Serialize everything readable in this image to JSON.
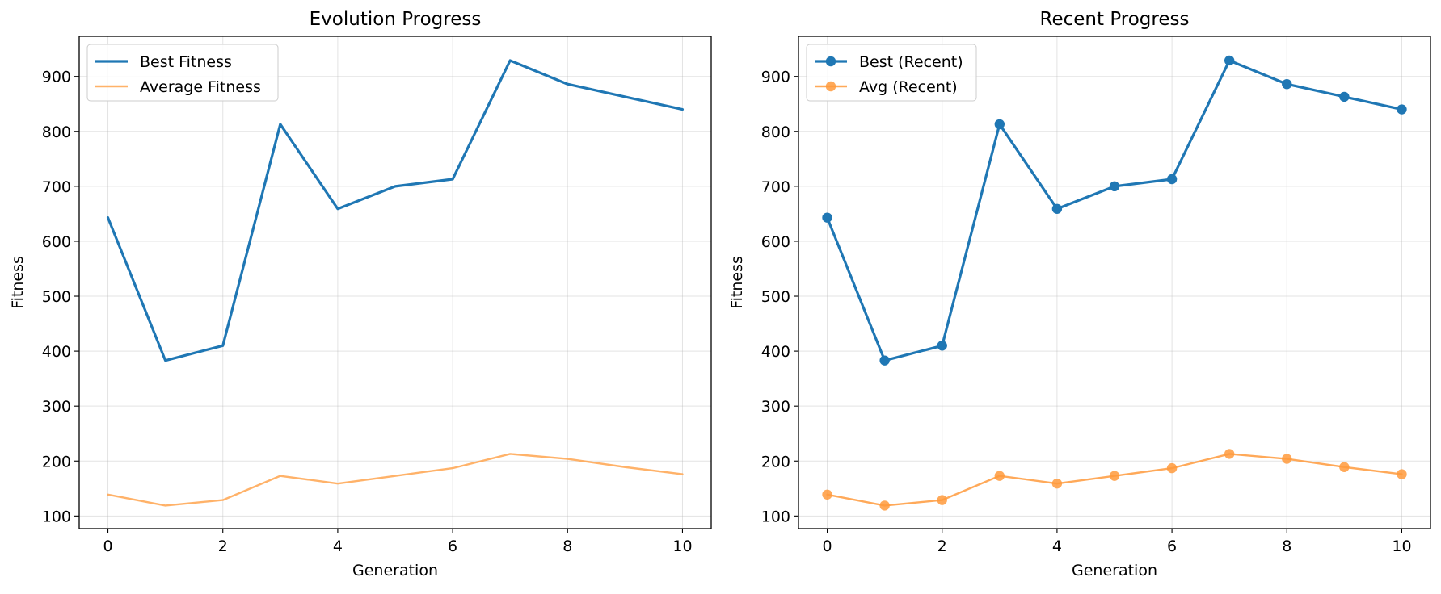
{
  "chart_data": [
    {
      "type": "line",
      "title": "Evolution Progress",
      "xlabel": "Generation",
      "ylabel": "Fitness",
      "xlim": [
        -0.5,
        10.5
      ],
      "ylim": [
        77,
        973
      ],
      "xticks": [
        0,
        2,
        4,
        6,
        8,
        10
      ],
      "yticks": [
        100,
        200,
        300,
        400,
        500,
        600,
        700,
        800,
        900
      ],
      "grid": true,
      "legend_position": "upper-left",
      "x": [
        0,
        1,
        2,
        3,
        4,
        5,
        6,
        7,
        8,
        9,
        10
      ],
      "series": [
        {
          "name": "Best Fitness",
          "color": "#1f77b4",
          "markers": false,
          "values": [
            643,
            383,
            410,
            813,
            659,
            700,
            713,
            929,
            886,
            863,
            840
          ]
        },
        {
          "name": "Average Fitness",
          "color": "#ffa54f",
          "markers": false,
          "values": [
            139,
            119,
            129,
            173,
            159,
            173,
            187,
            213,
            204,
            189,
            176
          ]
        }
      ]
    },
    {
      "type": "line",
      "title": "Recent Progress",
      "xlabel": "Generation",
      "ylabel": "Fitness",
      "xlim": [
        -0.5,
        10.5
      ],
      "ylim": [
        77,
        973
      ],
      "xticks": [
        0,
        2,
        4,
        6,
        8,
        10
      ],
      "yticks": [
        100,
        200,
        300,
        400,
        500,
        600,
        700,
        800,
        900
      ],
      "grid": true,
      "legend_position": "upper-left",
      "x": [
        0,
        1,
        2,
        3,
        4,
        5,
        6,
        7,
        8,
        9,
        10
      ],
      "series": [
        {
          "name": "Best (Recent)",
          "color": "#1f77b4",
          "markers": true,
          "values": [
            643,
            383,
            410,
            813,
            659,
            700,
            713,
            929,
            886,
            863,
            840
          ]
        },
        {
          "name": "Avg (Recent)",
          "color": "#ff9a3c",
          "markers": true,
          "values": [
            139,
            119,
            129,
            173,
            159,
            173,
            187,
            213,
            204,
            189,
            176
          ]
        }
      ]
    }
  ]
}
